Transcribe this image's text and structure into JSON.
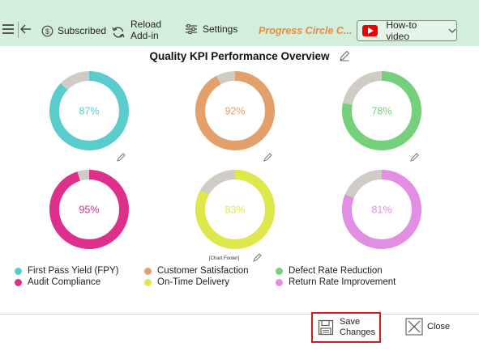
{
  "toolbar": {
    "subscribed_label": "Subscribed",
    "reload_line1": "Reload",
    "reload_line2": "Add-in",
    "settings_label": "Settings",
    "title_link": "Progress Circle C...",
    "howto_label": "How-to video"
  },
  "chart_footer_label": "[Chart Footer]",
  "actions": {
    "save_line1": "Save",
    "save_line2": "Changes",
    "close_label": "Close"
  },
  "colors": {
    "toolbar_bg": "#d3eedb",
    "track": "#d0ccc5",
    "highlight_border": "#d01c1c",
    "title_link": "#e88b3c"
  },
  "chart_data": {
    "type": "pie",
    "title": "Quality KPI Performance Overview",
    "series": [
      {
        "name": "First Pass Yield (FPY)",
        "value": 87,
        "label": "87%",
        "color": "#59cccd"
      },
      {
        "name": "Customer Satisfaction",
        "value": 92,
        "label": "92%",
        "color": "#e3a06a"
      },
      {
        "name": "Defect Rate Reduction",
        "value": 78,
        "label": "78%",
        "color": "#74d07a"
      },
      {
        "name": "Audit Compliance",
        "value": 95,
        "label": "95%",
        "color": "#dd2f8b"
      },
      {
        "name": "On-Time Delivery",
        "value": 83,
        "label": "83%",
        "color": "#dee84b"
      },
      {
        "name": "Return Rate Improvement",
        "value": 81,
        "label": "81%",
        "color": "#e18ee3"
      }
    ],
    "max": 100,
    "legend_position": "bottom"
  }
}
